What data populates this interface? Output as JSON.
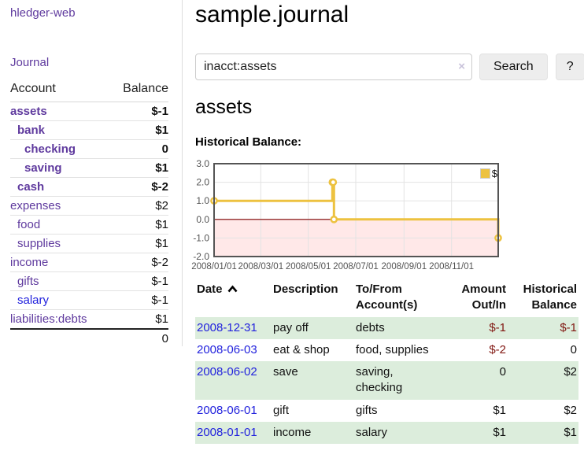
{
  "colors": {
    "link_purple": "#5f3a9e",
    "link_blue": "#2222dd",
    "negative_strong": "#801610",
    "negative_soft": "#b26d66",
    "row_stripe": "#dceddc",
    "button_bg": "#ededed",
    "chart_line": "#edc240",
    "chart_zero_line": "#800000",
    "chart_negative_fill": "rgba(255,0,0,0.09)",
    "axis_text": "#545454"
  },
  "sidebar": {
    "brand": "hledger-web",
    "nav": [
      {
        "label": "Journal"
      }
    ],
    "accounts_table": {
      "headers": {
        "account": "Account",
        "balance": "Balance"
      },
      "rows": [
        {
          "account": "assets",
          "indent": 0,
          "bold": true,
          "balance": "$-1",
          "balance_style": "negative-strong"
        },
        {
          "account": "bank",
          "indent": 1,
          "bold": true,
          "balance": "$1",
          "balance_style": "normal"
        },
        {
          "account": "checking",
          "indent": 2,
          "bold": true,
          "balance": "0",
          "balance_style": "normal"
        },
        {
          "account": "saving",
          "indent": 2,
          "bold": true,
          "balance": "$1",
          "balance_style": "normal"
        },
        {
          "account": "cash",
          "indent": 1,
          "bold": true,
          "balance": "$-2",
          "balance_style": "negative-strong"
        },
        {
          "account": "expenses",
          "indent": 0,
          "bold": false,
          "balance": "$2",
          "balance_style": "normal"
        },
        {
          "account": "food",
          "indent": 1,
          "bold": false,
          "balance": "$1",
          "balance_style": "normal"
        },
        {
          "account": "supplies",
          "indent": 1,
          "bold": false,
          "balance": "$1",
          "balance_style": "normal"
        },
        {
          "account": "income",
          "indent": 0,
          "bold": false,
          "balance": "$-2",
          "balance_style": "negative-soft"
        },
        {
          "account": "gifts",
          "indent": 1,
          "bold": false,
          "balance": "$-1",
          "balance_style": "negative-soft"
        },
        {
          "account": "salary",
          "indent": 1,
          "bold": false,
          "link_color": "blue",
          "balance": "$-1",
          "balance_style": "negative-soft"
        },
        {
          "account": "liabilities:debts",
          "indent": 0,
          "bold": false,
          "balance": "$1",
          "balance_style": "normal"
        }
      ],
      "total": "0"
    }
  },
  "main": {
    "title": "sample.journal",
    "search": {
      "value": "inacct:assets",
      "clear_icon": "×",
      "button": "Search",
      "help_button": "?"
    },
    "section_heading": "assets",
    "chart_label": "Historical Balance:",
    "register": {
      "headers": {
        "date": "Date",
        "description": "Description",
        "accounts": "To/From Account(s)",
        "amount": "Amount Out/In",
        "balance": "Historical Balance"
      },
      "rows": [
        {
          "date": "2008-12-31",
          "description": "pay off",
          "accounts": [
            "debts"
          ],
          "amount": "$-1",
          "amount_negative": true,
          "balance": "$-1",
          "balance_negative": true
        },
        {
          "date": "2008-06-03",
          "description": "eat & shop",
          "accounts": [
            "food, supplies"
          ],
          "amount": "$-2",
          "amount_negative": true,
          "balance": "0",
          "balance_negative": false
        },
        {
          "date": "2008-06-02",
          "description": "save",
          "accounts": [
            "saving,",
            "checking"
          ],
          "amount": "0",
          "amount_negative": false,
          "balance": "$2",
          "balance_negative": false
        },
        {
          "date": "2008-06-01",
          "description": "gift",
          "accounts": [
            "gifts"
          ],
          "amount": "$1",
          "amount_negative": false,
          "balance": "$2",
          "balance_negative": false
        },
        {
          "date": "2008-01-01",
          "description": "income",
          "accounts": [
            "salary"
          ],
          "amount": "$1",
          "amount_negative": false,
          "balance": "$1",
          "balance_negative": false
        }
      ]
    }
  },
  "chart_data": {
    "type": "line",
    "title": "Historical Balance",
    "legend": [
      {
        "label": "$",
        "color": "#edc240"
      }
    ],
    "legend_position": "top-right",
    "grid": true,
    "step": true,
    "x_range": [
      "2008-01-01",
      "2008-12-31"
    ],
    "ylim": [
      -2,
      3
    ],
    "yticks": [
      3.0,
      2.0,
      1.0,
      0.0,
      -1.0,
      -2.0
    ],
    "xticks": [
      "2008/01/01",
      "2008/03/01",
      "2008/05/01",
      "2008/07/01",
      "2008/09/01",
      "2008/11/01"
    ],
    "negative_region_shaded": true,
    "series": [
      {
        "name": "$",
        "points": [
          [
            "2008-01-01",
            1
          ],
          [
            "2008-06-01",
            2
          ],
          [
            "2008-06-02",
            2
          ],
          [
            "2008-06-03",
            0
          ],
          [
            "2008-12-31",
            -1
          ]
        ]
      }
    ]
  }
}
